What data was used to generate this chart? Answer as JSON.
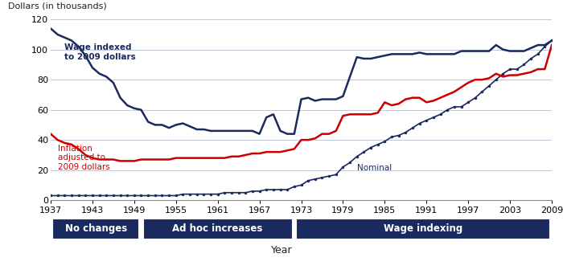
{
  "ylabel": "Dollars (in thousands)",
  "xlabel": "Year",
  "ylim": [
    0,
    120
  ],
  "yticks": [
    0,
    20,
    40,
    60,
    80,
    100,
    120
  ],
  "xticks": [
    1937,
    1943,
    1949,
    1955,
    1961,
    1967,
    1973,
    1979,
    1985,
    1991,
    1997,
    2003,
    2009
  ],
  "line_color_wage": "#1a2a5e",
  "line_color_inflation": "#cc0000",
  "line_color_nominal": "#1a2a5e",
  "band_color": "#1a2a5e",
  "band_text_color": "#ffffff",
  "annotation_wage": "Wage indexed\nto 2009 dollars",
  "annotation_inflation": "Inflation\nadjusted to\n2009 dollars",
  "annotation_nominal": "Nominal",
  "bands": [
    {
      "label": "No changes",
      "xstart": 1937,
      "xend": 1950
    },
    {
      "label": "Ad hoc increases",
      "xstart": 1950,
      "xend": 1972
    },
    {
      "label": "Wage indexing",
      "xstart": 1972,
      "xend": 2009
    }
  ],
  "wage_indexed": {
    "years": [
      1937,
      1938,
      1939,
      1940,
      1941,
      1942,
      1943,
      1944,
      1945,
      1946,
      1947,
      1948,
      1949,
      1950,
      1951,
      1952,
      1953,
      1954,
      1955,
      1956,
      1957,
      1958,
      1959,
      1960,
      1961,
      1962,
      1963,
      1964,
      1965,
      1966,
      1967,
      1968,
      1969,
      1970,
      1971,
      1972,
      1973,
      1974,
      1975,
      1976,
      1977,
      1978,
      1979,
      1980,
      1981,
      1982,
      1983,
      1984,
      1985,
      1986,
      1987,
      1988,
      1989,
      1990,
      1991,
      1992,
      1993,
      1994,
      1995,
      1996,
      1997,
      1998,
      1999,
      2000,
      2001,
      2002,
      2003,
      2004,
      2005,
      2006,
      2007,
      2008,
      2009
    ],
    "values": [
      114,
      110,
      108,
      106,
      102,
      96,
      88,
      84,
      82,
      78,
      68,
      63,
      61,
      60,
      52,
      50,
      50,
      48,
      50,
      51,
      49,
      47,
      47,
      46,
      46,
      46,
      46,
      46,
      46,
      46,
      44,
      55,
      57,
      46,
      44,
      44,
      67,
      68,
      66,
      67,
      67,
      67,
      69,
      82,
      95,
      94,
      94,
      95,
      96,
      97,
      97,
      97,
      97,
      98,
      97,
      97,
      97,
      97,
      97,
      99,
      99,
      99,
      99,
      99,
      103,
      100,
      99,
      99,
      99,
      101,
      103,
      103,
      106
    ]
  },
  "inflation_adjusted": {
    "years": [
      1937,
      1938,
      1939,
      1940,
      1941,
      1942,
      1943,
      1944,
      1945,
      1946,
      1947,
      1948,
      1949,
      1950,
      1951,
      1952,
      1953,
      1954,
      1955,
      1956,
      1957,
      1958,
      1959,
      1960,
      1961,
      1962,
      1963,
      1964,
      1965,
      1966,
      1967,
      1968,
      1969,
      1970,
      1971,
      1972,
      1973,
      1974,
      1975,
      1976,
      1977,
      1978,
      1979,
      1980,
      1981,
      1982,
      1983,
      1984,
      1985,
      1986,
      1987,
      1988,
      1989,
      1990,
      1991,
      1992,
      1993,
      1994,
      1995,
      1996,
      1997,
      1998,
      1999,
      2000,
      2001,
      2002,
      2003,
      2004,
      2005,
      2006,
      2007,
      2008,
      2009
    ],
    "values": [
      44,
      40,
      38,
      37,
      34,
      30,
      28,
      27,
      27,
      27,
      26,
      26,
      26,
      27,
      27,
      27,
      27,
      27,
      28,
      28,
      28,
      28,
      28,
      28,
      28,
      28,
      29,
      29,
      30,
      31,
      31,
      32,
      32,
      32,
      33,
      34,
      40,
      40,
      41,
      44,
      44,
      46,
      56,
      57,
      57,
      57,
      57,
      58,
      65,
      63,
      64,
      67,
      68,
      68,
      65,
      66,
      68,
      70,
      72,
      75,
      78,
      80,
      80,
      81,
      84,
      82,
      83,
      83,
      84,
      85,
      87,
      87,
      103
    ]
  },
  "nominal": {
    "years": [
      1937,
      1938,
      1939,
      1940,
      1941,
      1942,
      1943,
      1944,
      1945,
      1946,
      1947,
      1948,
      1949,
      1950,
      1951,
      1952,
      1953,
      1954,
      1955,
      1956,
      1957,
      1958,
      1959,
      1960,
      1961,
      1962,
      1963,
      1964,
      1965,
      1966,
      1967,
      1968,
      1969,
      1970,
      1971,
      1972,
      1973,
      1974,
      1975,
      1976,
      1977,
      1978,
      1979,
      1980,
      1981,
      1982,
      1983,
      1984,
      1985,
      1986,
      1987,
      1988,
      1989,
      1990,
      1991,
      1992,
      1993,
      1994,
      1995,
      1996,
      1997,
      1998,
      1999,
      2000,
      2001,
      2002,
      2003,
      2004,
      2005,
      2006,
      2007,
      2008,
      2009
    ],
    "values": [
      3,
      3,
      3,
      3,
      3,
      3,
      3,
      3,
      3,
      3,
      3,
      3,
      3,
      3,
      3,
      3,
      3,
      3,
      3,
      4,
      4,
      4,
      4,
      4,
      4,
      5,
      5,
      5,
      5,
      6,
      6,
      7,
      7,
      7,
      7,
      9,
      10,
      13,
      14,
      15,
      16,
      17,
      22,
      25,
      29,
      32,
      35,
      37,
      39,
      42,
      43,
      45,
      48,
      51,
      53,
      55,
      57,
      60,
      62,
      62,
      65,
      68,
      72,
      76,
      80,
      84,
      87,
      87,
      90,
      94,
      97,
      102,
      106
    ]
  }
}
